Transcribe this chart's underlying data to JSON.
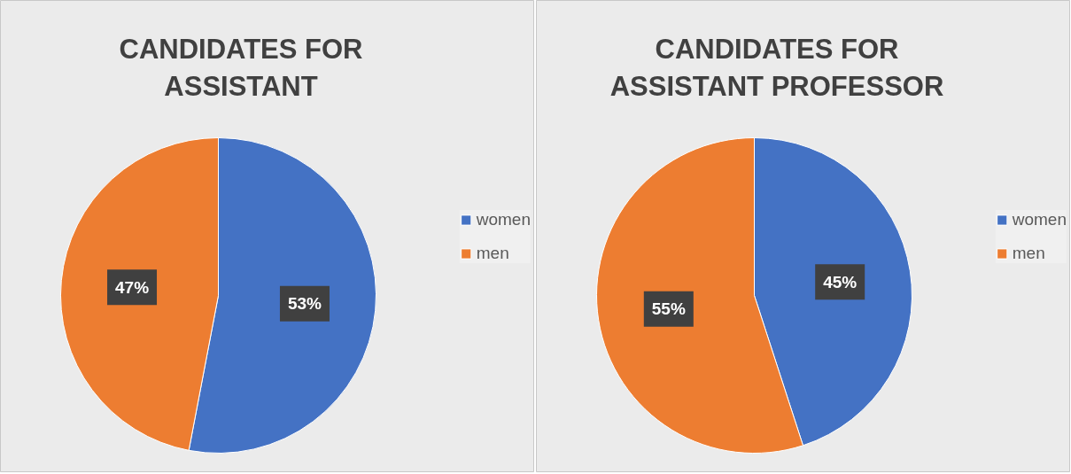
{
  "chart_data": [
    {
      "type": "pie",
      "title": "CANDIDATES FOR ASSISTANT",
      "categories": [
        "women",
        "men"
      ],
      "values": [
        53,
        47
      ],
      "colors": [
        "#4472c4",
        "#ed7d31"
      ],
      "value_labels": [
        "53%",
        "47%"
      ],
      "legend": "right"
    },
    {
      "type": "pie",
      "title": "CANDIDATES FOR ASSISTANT PROFESSOR",
      "categories": [
        "women",
        "men"
      ],
      "values": [
        45,
        55
      ],
      "colors": [
        "#4472c4",
        "#ed7d31"
      ],
      "value_labels": [
        "45%",
        "55%"
      ],
      "legend": "right"
    }
  ]
}
